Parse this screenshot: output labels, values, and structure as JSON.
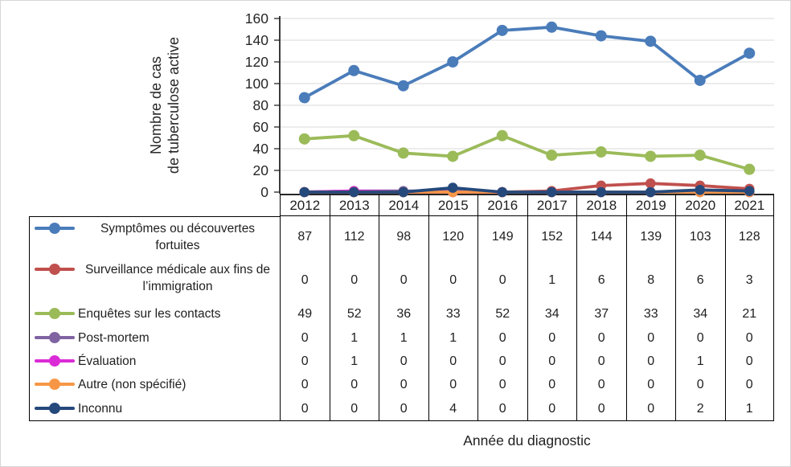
{
  "chart_data": {
    "type": "line",
    "title": "",
    "xlabel": "Année du diagnostic",
    "ylabel_lines": [
      "Nombre de cas",
      "de tuberculose active"
    ],
    "ylim": [
      0,
      160
    ],
    "yticks": [
      0,
      20,
      40,
      60,
      80,
      100,
      120,
      140,
      160
    ],
    "grid": true,
    "legend_position": "data-table-left",
    "categories": [
      "2012",
      "2013",
      "2014",
      "2015",
      "2016",
      "2017",
      "2018",
      "2019",
      "2020",
      "2021"
    ],
    "series": [
      {
        "name": "Symptômes ou découvertes fortuites",
        "color": "#4A7CBA",
        "values": [
          87,
          112,
          98,
          120,
          149,
          152,
          144,
          139,
          103,
          128
        ]
      },
      {
        "name": "Surveillance médicale aux fins de l’immigration",
        "color": "#C0504D",
        "values": [
          0,
          0,
          0,
          0,
          0,
          1,
          6,
          8,
          6,
          3
        ]
      },
      {
        "name": "Enquêtes sur les contacts",
        "color": "#9BBB59",
        "values": [
          49,
          52,
          36,
          33,
          52,
          34,
          37,
          33,
          34,
          21
        ]
      },
      {
        "name": "Post-mortem",
        "color": "#8064A2",
        "values": [
          0,
          1,
          1,
          1,
          0,
          0,
          0,
          0,
          0,
          0
        ]
      },
      {
        "name": "Évaluation",
        "color": "#DB2BD6",
        "values": [
          0,
          1,
          0,
          0,
          0,
          0,
          0,
          0,
          1,
          0
        ]
      },
      {
        "name": "Autre (non spécifié)",
        "color": "#F79646",
        "values": [
          0,
          0,
          0,
          0,
          0,
          0,
          0,
          0,
          0,
          0
        ]
      },
      {
        "name": "Inconnu",
        "color": "#25497B",
        "values": [
          0,
          0,
          0,
          4,
          0,
          0,
          0,
          0,
          2,
          1
        ]
      }
    ],
    "colors": {
      "gridline": "#d9d9d9",
      "axis": "#262626",
      "table_border": "#000000",
      "text": "#262626"
    }
  }
}
